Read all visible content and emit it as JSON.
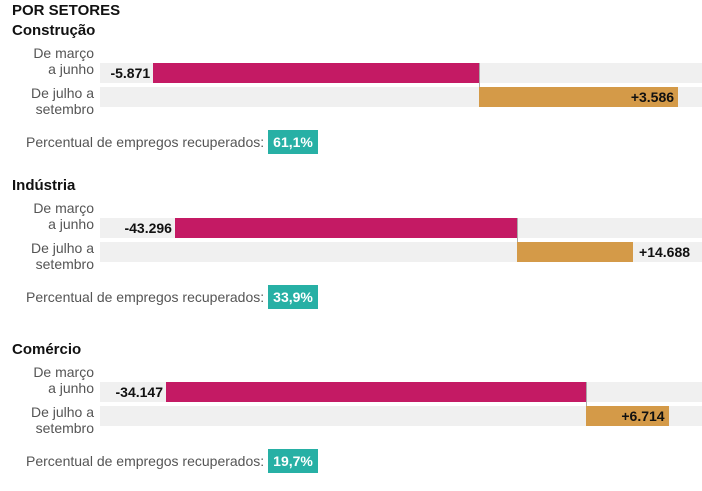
{
  "title": "POR SETORES",
  "row_labels": {
    "first_line1": "De março",
    "first_line2": "a junho",
    "second_line1": "De julho a",
    "second_line2": "setembro"
  },
  "pct_label": "Percentual de empregos recuperados:",
  "colors": {
    "loss": "#c41a64",
    "gain": "#d49a48",
    "badge": "#27b0a5",
    "track": "#f0f0f0"
  },
  "chart_data": [
    {
      "type": "bar",
      "title": "Construção",
      "categories": [
        "De março a junho",
        "De julho a setembro"
      ],
      "values": [
        -5871,
        3586
      ],
      "labels": [
        "-5.871",
        "+3.586"
      ],
      "recovered_pct": "61,1%"
    },
    {
      "type": "bar",
      "title": "Indústria",
      "categories": [
        "De março a junho",
        "De julho a setembro"
      ],
      "values": [
        -43296,
        14688
      ],
      "labels": [
        "-43.296",
        "+14.688"
      ],
      "recovered_pct": "33,9%"
    },
    {
      "type": "bar",
      "title": "Comércio",
      "categories": [
        "De março a junho",
        "De julho a setembro"
      ],
      "values": [
        -34147,
        6714
      ],
      "labels": [
        "-34.147",
        "+6.714"
      ],
      "recovered_pct": "19,7%"
    }
  ]
}
